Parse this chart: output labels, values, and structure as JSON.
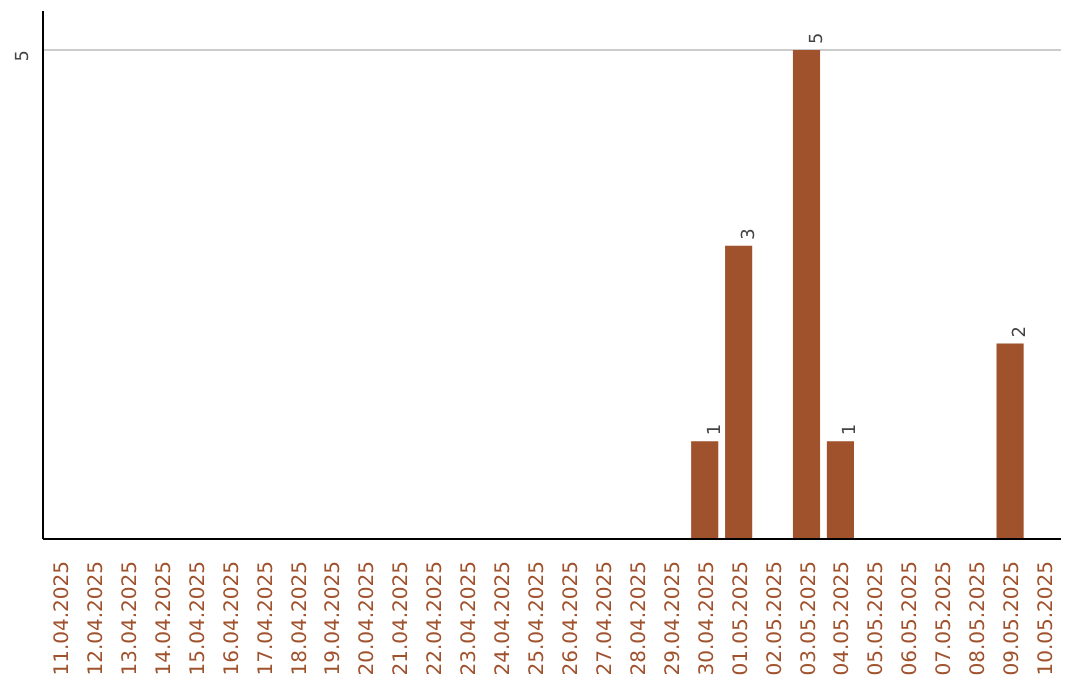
{
  "chart_data": {
    "type": "bar",
    "categories": [
      "11.04.2025",
      "12.04.2025",
      "13.04.2025",
      "14.04.2025",
      "15.04.2025",
      "16.04.2025",
      "17.04.2025",
      "18.04.2025",
      "19.04.2025",
      "20.04.2025",
      "21.04.2025",
      "22.04.2025",
      "23.04.2025",
      "24.04.2025",
      "25.04.2025",
      "26.04.2025",
      "27.04.2025",
      "28.04.2025",
      "29.04.2025",
      "30.04.2025",
      "01.05.2025",
      "02.05.2025",
      "03.05.2025",
      "04.05.2025",
      "05.05.2025",
      "06.05.2025",
      "07.05.2025",
      "08.05.2025",
      "09.05.2025",
      "10.05.2025"
    ],
    "values": [
      null,
      null,
      null,
      null,
      null,
      null,
      null,
      null,
      null,
      null,
      null,
      null,
      null,
      null,
      null,
      null,
      null,
      null,
      null,
      1,
      3,
      null,
      5,
      1,
      null,
      null,
      null,
      null,
      2,
      null
    ],
    "ylim": [
      0,
      5.4
    ],
    "ref_lines": [
      {
        "axis": "y",
        "value": 5,
        "label": "5",
        "color": "#cccccc"
      }
    ],
    "value_labels": [
      null,
      null,
      null,
      null,
      null,
      null,
      null,
      null,
      null,
      null,
      null,
      null,
      null,
      null,
      null,
      null,
      null,
      null,
      null,
      "1",
      "3",
      null,
      "5",
      "1",
      null,
      null,
      null,
      null,
      "2",
      null
    ],
    "color": "#a0522d"
  }
}
